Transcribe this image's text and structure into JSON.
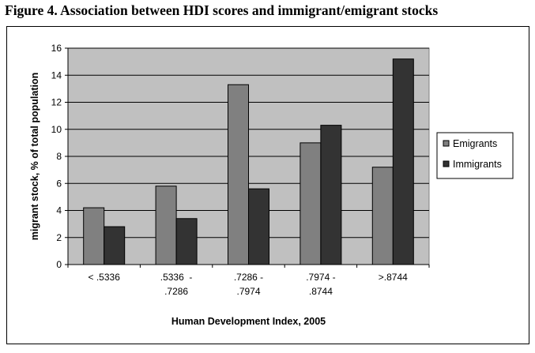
{
  "figure": {
    "title": "Figure 4. Association between HDI scores and immigrant/emigrant stocks"
  },
  "chart_data": {
    "type": "bar",
    "categories": [
      [
        "< .5336"
      ],
      [
        ".5336  -",
        ".7286"
      ],
      [
        ".7286 -",
        ".7974"
      ],
      [
        ".7974 -",
        ".8744"
      ],
      [
        ">.8744"
      ]
    ],
    "series": [
      {
        "name": "Emigrants",
        "values": [
          4.2,
          5.8,
          13.3,
          9.0,
          7.2
        ],
        "color": "#808080"
      },
      {
        "name": "Immigrants",
        "values": [
          2.8,
          3.4,
          5.6,
          10.3,
          15.2
        ],
        "color": "#333333"
      }
    ],
    "xlabel": "Human Development Index, 2005",
    "ylabel": "migrant stock, % of total population",
    "ylim": [
      0,
      16
    ],
    "yticks": [
      0,
      2,
      4,
      6,
      8,
      10,
      12,
      14,
      16
    ],
    "grid": true,
    "legend_position": "right",
    "plot_background": "#c0c0c0"
  }
}
